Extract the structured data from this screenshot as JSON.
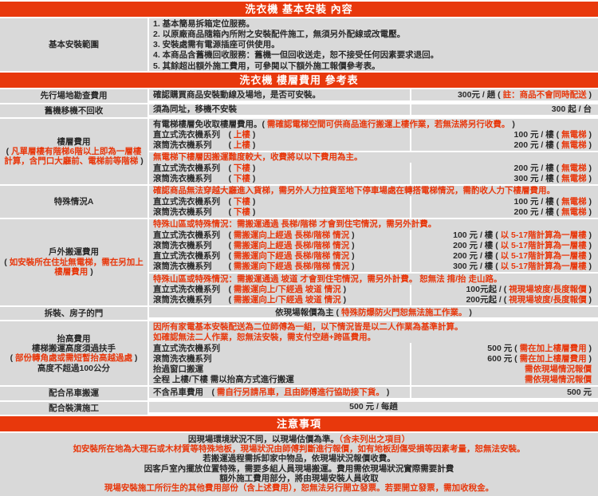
{
  "colors": {
    "accent_orange": "#e8380c",
    "cell_gray": "#d9d9d9",
    "text_black": "#2b2b2b",
    "text_red": "#e8380c",
    "gap_white": "#ffffff"
  },
  "header1": "洗衣機 基本安裝 內容",
  "header2": "洗衣機 樓層費用 參考表",
  "header3": "注意事項",
  "basic_section": {
    "rows": [
      {
        "label": [
          [
            [
              "基本安裝範圍",
              "k"
            ]
          ]
        ],
        "blocks": [
          [
            {
              "full": [
                [
                  "1. 基本簡易拆箱定位服務。",
                  "k"
                ]
              ]
            },
            {
              "full": [
                [
                  "2. 以原廠商品隨箱內所附之安裝配件施工，無須另外配線或改電壓。",
                  "k"
                ]
              ]
            },
            {
              "full": [
                [
                  "3. 安裝處需有電源插座可供使用。",
                  "k"
                ]
              ]
            },
            {
              "full": [
                [
                  "4. 本商品含舊機回收服務：舊機一但回收送走，恕不接受任何因素要求退回。",
                  "k"
                ]
              ]
            },
            {
              "full": [
                [
                  "5. 其餘超出額外施工費用，可參閱以下額外施工報價參考表。",
                  "k"
                ]
              ]
            }
          ]
        ]
      }
    ]
  },
  "fee_section": {
    "rows": [
      {
        "label": [
          [
            [
              "先行場地勘查費用",
              "k"
            ]
          ]
        ],
        "blocks": [
          [
            {
              "desc": [
                [
                  "確認購買商品安裝動線及場地，是否可安裝。",
                  "k"
                ]
              ],
              "price": [
                [
                  "300元 / 趟 ( ",
                  "k"
                ],
                [
                  "註：商品不會同時配送",
                  "r"
                ],
                [
                  " )",
                  "k"
                ]
              ]
            }
          ]
        ]
      },
      {
        "label": [
          [
            [
              "舊機移機不回收",
              "k"
            ]
          ]
        ],
        "blocks": [
          [
            {
              "desc": [
                [
                  "須為同址，移機不安裝",
                  "k"
                ]
              ],
              "price": [
                [
                  "300 起 / 台",
                  "k"
                ]
              ]
            }
          ]
        ]
      },
      {
        "label": [
          [
            [
              "樓層費用",
              "k"
            ]
          ],
          [
            [
              "( ",
              "k"
            ],
            [
              "凡單層樓有階梯6階以上即為一層樓計算，含門口大廳前、電梯前等階梯",
              "r"
            ],
            [
              " )",
              "k"
            ]
          ]
        ],
        "blocks": [
          [
            {
              "full": [
                [
                  "有電梯樓層免收取樓層費用。( ",
                  "k"
                ],
                [
                  "需確認電梯空間可供商品進行搬運上樓作業，若無法將另行收費。",
                  "r"
                ],
                [
                  " )",
                  "k"
                ]
              ]
            },
            {
              "desc": [
                [
                  "直立式洗衣機系列　( ",
                  "k"
                ],
                [
                  "上樓",
                  "r"
                ],
                [
                  " )",
                  "k"
                ]
              ],
              "price": [
                [
                  "100 元 / 樓 ( ",
                  "k"
                ],
                [
                  "無電梯",
                  "r"
                ],
                [
                  " )",
                  "k"
                ]
              ]
            },
            {
              "desc": [
                [
                  "滾筒洗衣機系列　　( ",
                  "k"
                ],
                [
                  "上樓",
                  "r"
                ],
                [
                  " )",
                  "k"
                ]
              ],
              "price": [
                [
                  "200 元 / 樓 ( ",
                  "k"
                ],
                [
                  "無電梯",
                  "r"
                ],
                [
                  " )",
                  "k"
                ]
              ]
            }
          ],
          [
            {
              "full": [
                [
                  "無電梯下樓層因搬運難度較大，收費將以以下費用為主。",
                  "r"
                ]
              ]
            },
            {
              "desc": [
                [
                  "直立式洗衣機系列　( ",
                  "k"
                ],
                [
                  "下樓",
                  "r"
                ],
                [
                  " )",
                  "k"
                ]
              ],
              "price": [
                [
                  "200 元 / 樓 ( ",
                  "k"
                ],
                [
                  "無電梯",
                  "r"
                ],
                [
                  " )",
                  "k"
                ]
              ]
            },
            {
              "desc": [
                [
                  "滾筒洗衣機系列　　( ",
                  "k"
                ],
                [
                  "下樓",
                  "r"
                ],
                [
                  " )",
                  "k"
                ]
              ],
              "price": [
                [
                  "300 元 / 樓 ( ",
                  "k"
                ],
                [
                  "無電梯",
                  "r"
                ],
                [
                  " )",
                  "k"
                ]
              ]
            }
          ]
        ]
      },
      {
        "label": [
          [
            [
              "特殊情況A",
              "k"
            ]
          ]
        ],
        "blocks": [
          [
            {
              "full": [
                [
                  "確認商品無法穿越大廳進入貨梯，需另外人力拉貨至地下停車場處在轉搭電梯情況，需酌收人力下樓層費用。",
                  "r"
                ]
              ]
            },
            {
              "desc": [
                [
                  "直立式洗衣機系列　( ",
                  "k"
                ],
                [
                  "下樓",
                  "r"
                ],
                [
                  " )",
                  "k"
                ]
              ],
              "price": [
                [
                  "100 元 / 樓 ( ",
                  "k"
                ],
                [
                  "無電梯",
                  "r"
                ],
                [
                  " )",
                  "k"
                ]
              ]
            },
            {
              "desc": [
                [
                  "滾筒洗衣機系列　　( ",
                  "k"
                ],
                [
                  "下樓",
                  "r"
                ],
                [
                  " )",
                  "k"
                ]
              ],
              "price": [
                [
                  "200 元 / 樓 ( ",
                  "k"
                ],
                [
                  "無電梯",
                  "r"
                ],
                [
                  " )",
                  "k"
                ]
              ]
            }
          ]
        ]
      },
      {
        "label": [
          [
            [
              "戶外搬運費用",
              "k"
            ]
          ],
          [
            [
              "( ",
              "k"
            ],
            [
              "如安裝所在住址無電梯，需在另加上樓層費用",
              "r"
            ],
            [
              " )",
              "k"
            ]
          ]
        ],
        "blocks": [
          [
            {
              "full": [
                [
                  "特殊山區或特殊情況：需搬運通過 長梯/階梯 才會到住宅情況，需另外計費。",
                  "r"
                ]
              ]
            },
            {
              "desc": [
                [
                  "直立式洗衣機系列　( ",
                  "k"
                ],
                [
                  "需搬運向上經過 長梯/階梯 情況",
                  "r"
                ],
                [
                  " )",
                  "k"
                ]
              ],
              "price": [
                [
                  "100 元 / 樓 ( ",
                  "k"
                ],
                [
                  "以 5-17階計算為一層樓",
                  "r"
                ],
                [
                  " )",
                  "k"
                ]
              ]
            },
            {
              "desc": [
                [
                  "滾筒洗衣機系列　　( ",
                  "k"
                ],
                [
                  "需搬運向上經過 長梯/階梯 情況",
                  "r"
                ],
                [
                  " )",
                  "k"
                ]
              ],
              "price": [
                [
                  "200 元 / 樓 ( ",
                  "k"
                ],
                [
                  "以 5-17階計算為一層樓",
                  "r"
                ],
                [
                  " )",
                  "k"
                ]
              ]
            },
            {
              "desc": [
                [
                  "直立式洗衣機系列　( ",
                  "k"
                ],
                [
                  "需搬運向下經過 長梯/階梯 情況",
                  "r"
                ],
                [
                  " )",
                  "k"
                ]
              ],
              "price": [
                [
                  "200 元 / 樓 ( ",
                  "k"
                ],
                [
                  "以 5-17階計算為一層樓",
                  "r"
                ],
                [
                  " )",
                  "k"
                ]
              ]
            },
            {
              "desc": [
                [
                  "滾筒洗衣機系列　　( ",
                  "k"
                ],
                [
                  "需搬運向下經過 長梯/階梯 情況",
                  "r"
                ],
                [
                  " )",
                  "k"
                ]
              ],
              "price": [
                [
                  "300 元 / 樓 ( ",
                  "k"
                ],
                [
                  "以 5-17階計算為一層樓",
                  "r"
                ],
                [
                  " )",
                  "k"
                ]
              ]
            }
          ],
          [
            {
              "full": [
                [
                  "特殊山區或特殊情況：需搬運通過 坡道 才會到住宅情況，需另外計費。 恕無法 揹/抬 走山路。",
                  "r"
                ]
              ]
            },
            {
              "desc": [
                [
                  "直立式洗衣機系列　( ",
                  "k"
                ],
                [
                  "需搬運向上/下經過 坡道 情況",
                  "r"
                ],
                [
                  " )",
                  "k"
                ]
              ],
              "price": [
                [
                  "100元起 / ( ",
                  "k"
                ],
                [
                  "視現場坡度/長度報價",
                  "r"
                ],
                [
                  " )",
                  "k"
                ]
              ]
            },
            {
              "desc": [
                [
                  "滾筒洗衣機系列　　( ",
                  "k"
                ],
                [
                  "需搬運向上/下經過 坡道 情況",
                  "r"
                ],
                [
                  " )",
                  "k"
                ]
              ],
              "price": [
                [
                  "200元起 / ( ",
                  "k"
                ],
                [
                  "視現場坡度/長度報價",
                  "r"
                ],
                [
                  " )",
                  "k"
                ]
              ]
            }
          ]
        ]
      },
      {
        "label": [
          [
            [
              "拆裝、房子的門",
              "k"
            ]
          ]
        ],
        "blocks": [
          [
            {
              "full": [
                [
                  "依現場報價為主 ( ",
                  "k"
                ],
                [
                  "特殊防爆防火門恕無法施工作業。",
                  "r"
                ],
                [
                  " )",
                  "k"
                ]
              ],
              "align": "center"
            }
          ]
        ]
      },
      {
        "label": [
          [
            [
              "抬高費用",
              "k"
            ]
          ],
          [
            [
              "樓梯搬運高度須過扶手",
              "k"
            ]
          ],
          [
            [
              "( ",
              "k"
            ],
            [
              "部份轉角處或需短暫抬高越過處",
              "r"
            ],
            [
              " )",
              "k"
            ]
          ],
          [
            [
              "高度不超過100公分",
              "k"
            ]
          ]
        ],
        "blocks": [
          [
            {
              "full": [
                [
                  "因所有家電基本安裝配送為二位師傅為一組，以下情況皆是以二人作業為基準計算。",
                  "r"
                ]
              ]
            },
            {
              "full": [
                [
                  "如確認無法二人作業，恕無法安裝，需支付空趟+跨區費用。",
                  "r"
                ]
              ]
            },
            {
              "desc": [
                [
                  "直立式洗衣機系列",
                  "k"
                ]
              ],
              "price": [
                [
                  "500 元 ( ",
                  "k"
                ],
                [
                  "需在加上樓層費用",
                  "r"
                ],
                [
                  " )",
                  "k"
                ]
              ]
            },
            {
              "desc": [
                [
                  "滾筒洗衣機系列",
                  "k"
                ]
              ],
              "price": [
                [
                  "600 元 ( ",
                  "k"
                ],
                [
                  "需在加上樓層費用",
                  "r"
                ],
                [
                  " )",
                  "k"
                ]
              ]
            },
            {
              "desc": [
                [
                  "抬過窗口搬運",
                  "k"
                ]
              ],
              "price": [
                [
                  "需依現場情況報價",
                  "r"
                ]
              ]
            },
            {
              "desc": [
                [
                  "全程 上樓/下樓 需以抬高方式進行搬運",
                  "k"
                ]
              ],
              "price": [
                [
                  "需依現場情況報價",
                  "r"
                ]
              ]
            }
          ]
        ]
      },
      {
        "label": [
          [
            [
              "配合吊車搬運",
              "k"
            ]
          ]
        ],
        "blocks": [
          [
            {
              "desc": [
                [
                  "不含吊車費用　( ",
                  "k"
                ],
                [
                  "需自行另請吊車，且由師傅進行協助接下貨。",
                  "r"
                ],
                [
                  " )",
                  "k"
                ]
              ],
              "price": [
                [
                  "500 元",
                  "k"
                ]
              ]
            }
          ]
        ]
      },
      {
        "label": [
          [
            [
              "配合裝潢施工",
              "k"
            ]
          ]
        ],
        "blocks": [
          [
            {
              "full": [
                [
                  "500 元 / 每趟",
                  "k"
                ]
              ],
              "align": "center"
            }
          ]
        ]
      }
    ]
  },
  "notes": [
    [
      [
        "因現場環境狀況不同，以現場估價為準。",
        "k"
      ],
      [
        "（含未列出之項目）",
        "r"
      ]
    ],
    [
      [
        "如安裝所在地為大理石或木材質等特殊地板，現場狀況由師傅判斷進行報價，如有地板刮傷受損等因素考量，恕無法安裝。",
        "r"
      ]
    ],
    [
      [
        "若搬運過程需拆卸家中物品，依現場狀況報價收費。",
        "k"
      ]
    ],
    [
      [
        "因客戶室內擺放位置特殊，需要多組人員現場搬運。費用需依現場狀況實際需要計費",
        "k"
      ]
    ],
    [
      [
        "額外施工費用部分，將由現場安裝人員收取",
        "k"
      ]
    ],
    [
      [
        "現場安裝施工所衍生的其他費用部份（含上述費用），恕無法另行開立發票。若要開立發票，需加收稅金。",
        "r"
      ]
    ]
  ]
}
